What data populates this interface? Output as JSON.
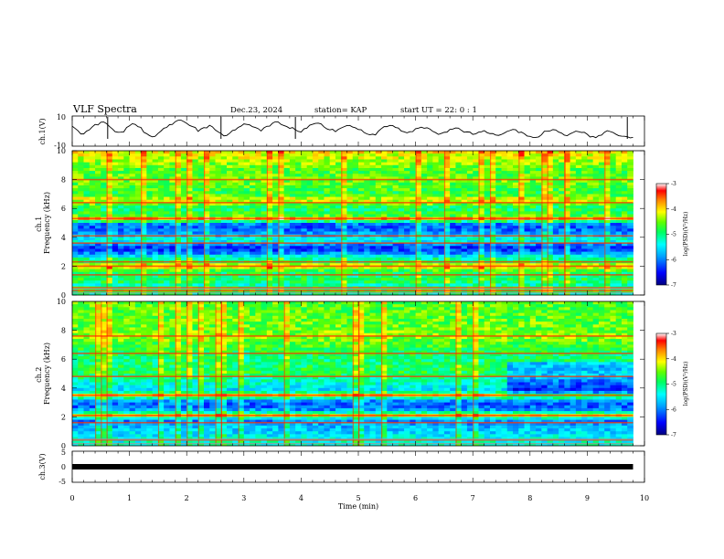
{
  "header": {
    "title": "VLF Spectra",
    "date": "Dec.23, 2024",
    "station": "station= KAP",
    "start": "start  UT =   22: 0  : 1"
  },
  "colors": {
    "colormap": [
      "#000080",
      "#0000ff",
      "#00a0ff",
      "#00ffff",
      "#00ff60",
      "#60ff00",
      "#ffff00",
      "#ff8000",
      "#ff0000",
      "#ffffff"
    ],
    "trace": "#000000"
  },
  "chart_data": [
    {
      "type": "line",
      "ylabel": "ch.1(V)",
      "ylim": [
        -10,
        10
      ],
      "yticks": [
        "10",
        "-10"
      ],
      "xlim": [
        0,
        10
      ],
      "x_unit": "min",
      "series": [
        {
          "values": [
            3,
            0,
            -2,
            1,
            4,
            6,
            5,
            2,
            -1,
            0,
            3,
            5,
            2,
            -2,
            -4,
            -1,
            2,
            4,
            6,
            7,
            5,
            3,
            0,
            2,
            4,
            1,
            -2,
            -3,
            0,
            3,
            5,
            4,
            2,
            0,
            3,
            5,
            6,
            4,
            2,
            1,
            -1,
            2,
            4,
            5,
            3,
            1,
            0,
            2,
            4,
            3,
            1,
            -1,
            -3,
            -2,
            1,
            3,
            4,
            2,
            0,
            -1,
            1,
            3,
            2,
            0,
            -2,
            -1,
            1,
            2,
            0,
            -1,
            -2,
            -1,
            0,
            -2,
            -3,
            -2,
            0,
            1,
            -1,
            -2,
            -3,
            -4,
            -2,
            0,
            1,
            -1,
            -3,
            -2,
            0,
            -1,
            -2,
            -4,
            -3,
            -1,
            0,
            -2,
            -3,
            -4,
            -4
          ]
        }
      ]
    },
    {
      "type": "heatmap",
      "ylabel": "ch.1\nFrequency  (kHz)",
      "ylim": [
        0,
        10
      ],
      "yticks": [
        "0",
        "2",
        "4",
        "6",
        "8",
        "10"
      ],
      "xlim": [
        0,
        10
      ],
      "colorbar": {
        "label": "log(PSD)(V²/Hz)",
        "range": [
          -7,
          -3
        ],
        "ticks": [
          "-3",
          "-4",
          "-5",
          "-6",
          "-7"
        ]
      },
      "profile": [
        [
          0,
          0.45
        ],
        [
          0.4,
          0.6
        ],
        [
          0.7,
          0.45
        ],
        [
          1.0,
          0.55
        ],
        [
          1.4,
          0.5
        ],
        [
          1.8,
          0.6
        ],
        [
          2.0,
          0.82
        ],
        [
          2.2,
          0.55
        ],
        [
          2.6,
          0.45
        ],
        [
          3.0,
          0.2
        ],
        [
          3.3,
          0.18
        ],
        [
          3.5,
          0.25
        ],
        [
          3.8,
          0.45
        ],
        [
          4.2,
          0.3
        ],
        [
          4.6,
          0.2
        ],
        [
          5.0,
          0.25
        ],
        [
          5.25,
          0.85
        ],
        [
          5.5,
          0.6
        ],
        [
          6.0,
          0.5
        ],
        [
          6.6,
          0.72
        ],
        [
          7.0,
          0.55
        ],
        [
          7.6,
          0.6
        ],
        [
          8.0,
          0.62
        ],
        [
          8.6,
          0.58
        ],
        [
          9.2,
          0.65
        ],
        [
          9.6,
          0.7
        ],
        [
          10.0,
          0.75
        ]
      ],
      "lines": [
        0.3,
        0.5,
        1.4,
        2.0,
        2.3,
        3.6,
        4.1,
        5.3,
        6.4,
        8.0
      ]
    },
    {
      "type": "heatmap",
      "ylabel": "ch.2\nFrequency  (kHz)",
      "ylim": [
        0,
        10
      ],
      "yticks": [
        "0",
        "2",
        "4",
        "6",
        "8",
        "10"
      ],
      "xlim": [
        0,
        10
      ],
      "colorbar": {
        "label": "log(PSD)(V²/Hz)",
        "range": [
          -7,
          -3
        ],
        "ticks": [
          "-3",
          "-4",
          "-5",
          "-6",
          "-7"
        ]
      },
      "profile": [
        [
          0,
          0.45
        ],
        [
          0.5,
          0.4
        ],
        [
          1.0,
          0.35
        ],
        [
          1.4,
          0.3
        ],
        [
          1.8,
          0.25
        ],
        [
          2.1,
          0.72
        ],
        [
          2.4,
          0.3
        ],
        [
          2.8,
          0.2
        ],
        [
          3.2,
          0.3
        ],
        [
          3.5,
          0.75
        ],
        [
          3.8,
          0.35
        ],
        [
          4.5,
          0.45
        ],
        [
          5.0,
          0.55
        ],
        [
          6.0,
          0.5
        ],
        [
          7.0,
          0.58
        ],
        [
          7.6,
          0.65
        ],
        [
          8.0,
          0.62
        ],
        [
          9.0,
          0.6
        ],
        [
          10.0,
          0.6
        ]
      ],
      "lines": [
        0.4,
        1.6,
        2.1,
        3.5,
        4.8,
        6.4,
        7.6
      ]
    },
    {
      "type": "line",
      "ylabel": "ch.3(V)",
      "ylim": [
        -5,
        5
      ],
      "yticks": [
        "5",
        "0",
        "-5"
      ],
      "xlim": [
        0,
        10
      ],
      "x_unit": "min",
      "series": [
        {
          "values": [
            0,
            0
          ]
        }
      ]
    }
  ],
  "xaxis": {
    "label": "Time  (min)",
    "ticks": [
      "0",
      "1",
      "2",
      "3",
      "4",
      "5",
      "6",
      "7",
      "8",
      "9",
      "10"
    ]
  }
}
